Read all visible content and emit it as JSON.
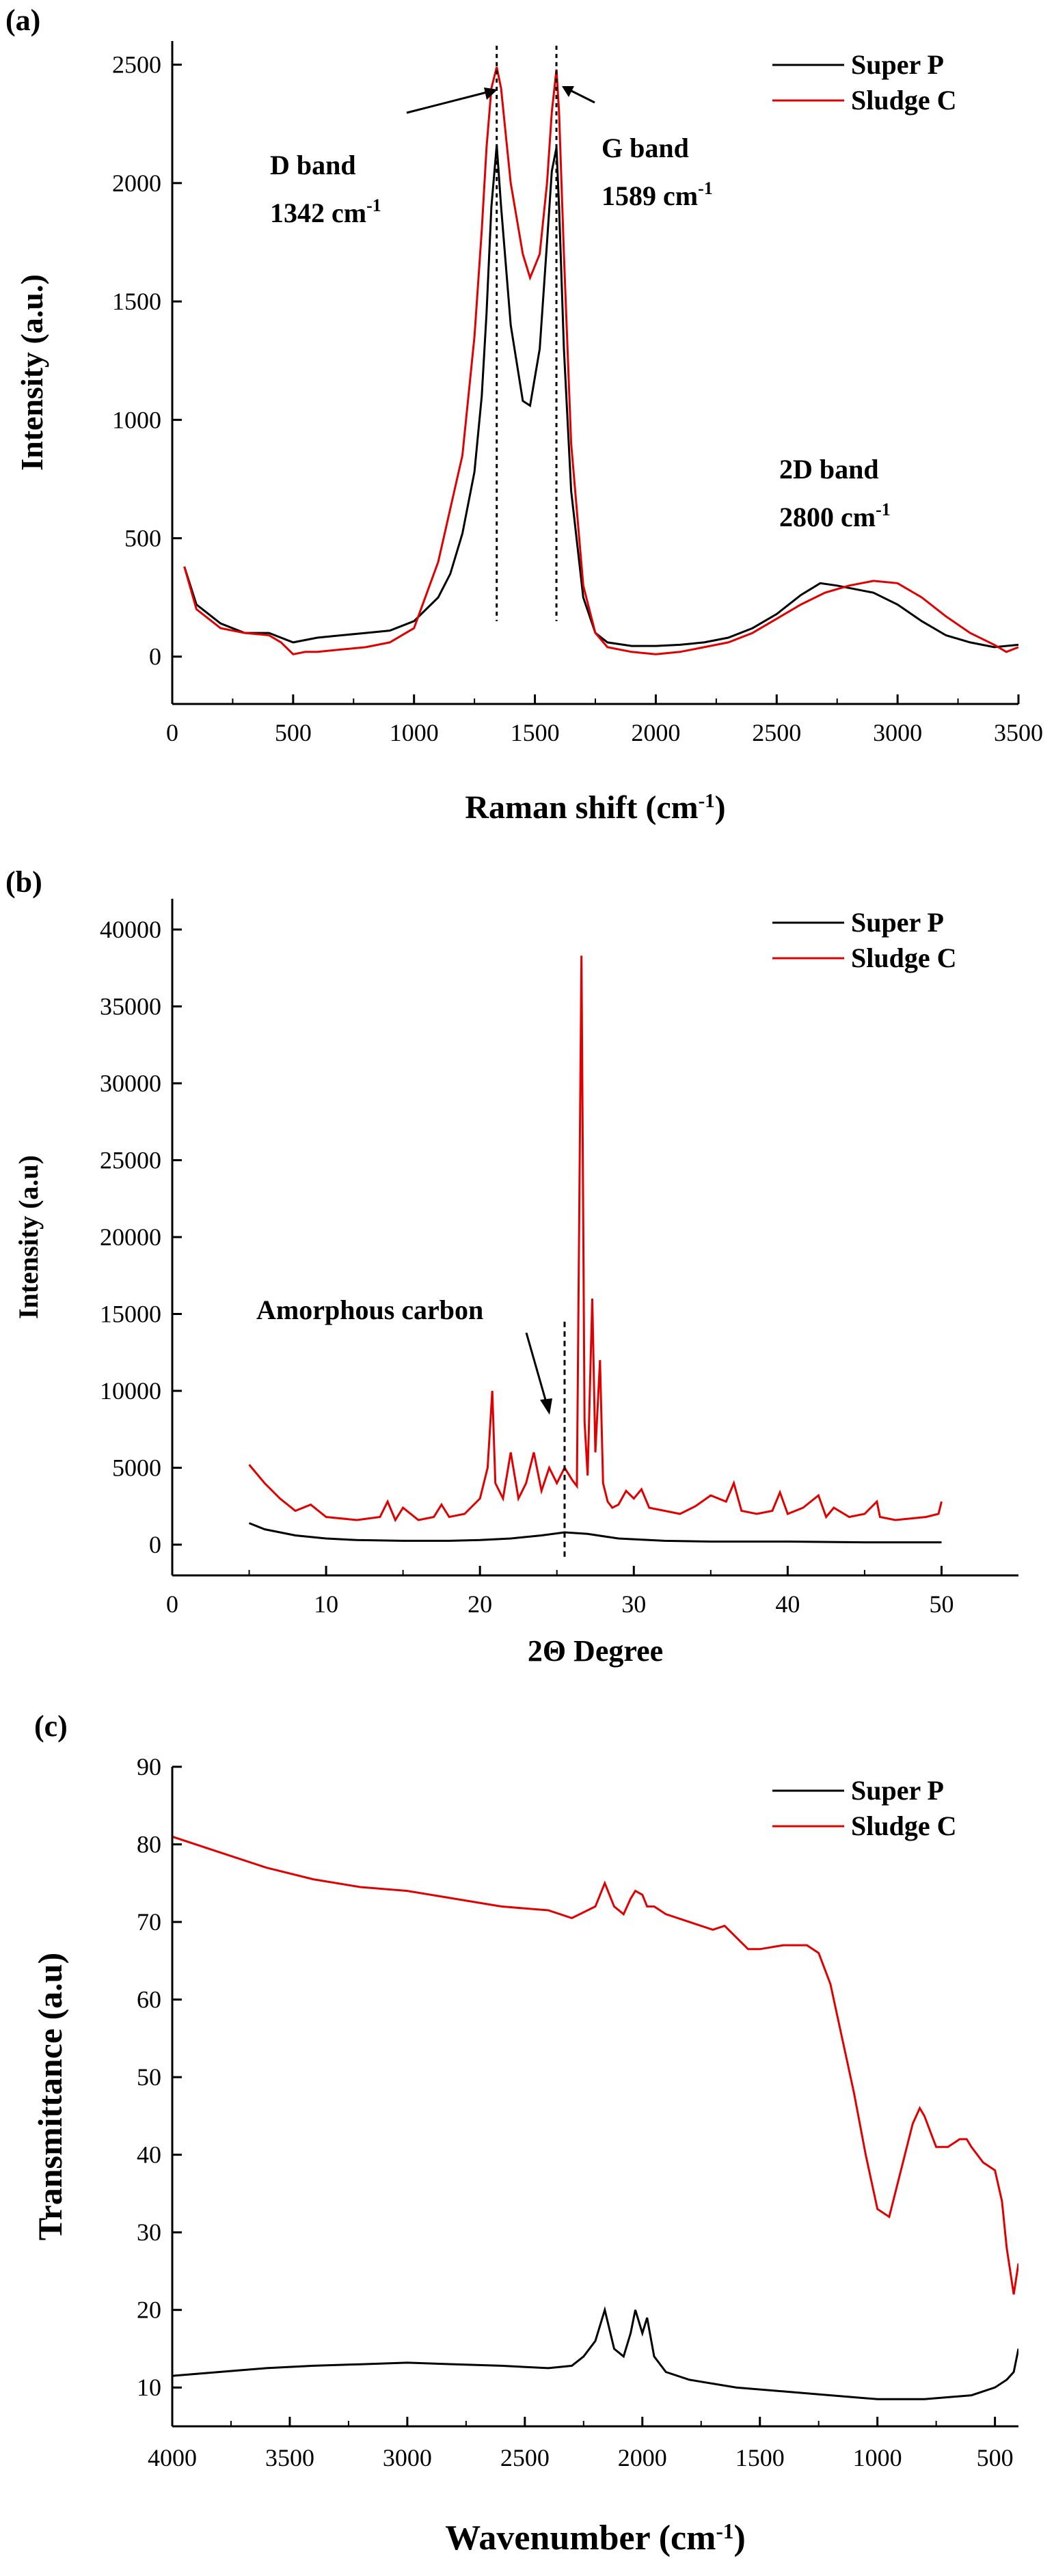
{
  "chart_data": [
    {
      "panel": "(a)",
      "type": "line",
      "xlabel": "Raman shift",
      "xlabel_unit": "(cm-1)",
      "ylabel": "Intensity (a.u.)",
      "xlim": [
        0,
        3500
      ],
      "ylim": [
        -200,
        2600
      ],
      "xticks": [
        0,
        500,
        1000,
        1500,
        2000,
        2500,
        3000,
        3500
      ],
      "yticks": [
        0,
        500,
        1000,
        1500,
        2000,
        2500
      ],
      "legend": "top-right",
      "series": [
        {
          "name": "Super P",
          "color": "#000000",
          "x": [
            50,
            100,
            200,
            300,
            400,
            500,
            600,
            700,
            800,
            900,
            1000,
            1100,
            1150,
            1200,
            1250,
            1280,
            1300,
            1320,
            1342,
            1360,
            1400,
            1450,
            1480,
            1520,
            1550,
            1570,
            1589,
            1600,
            1620,
            1650,
            1700,
            1750,
            1800,
            1900,
            2000,
            2100,
            2200,
            2300,
            2400,
            2500,
            2600,
            2680,
            2750,
            2800,
            2900,
            3000,
            3100,
            3200,
            3300,
            3400,
            3500
          ],
          "y": [
            380,
            220,
            140,
            100,
            100,
            60,
            80,
            90,
            100,
            110,
            150,
            250,
            350,
            520,
            780,
            1100,
            1450,
            1900,
            2160,
            1900,
            1400,
            1080,
            1060,
            1300,
            1750,
            2050,
            2150,
            1900,
            1300,
            700,
            250,
            100,
            60,
            45,
            45,
            50,
            60,
            80,
            120,
            180,
            260,
            310,
            300,
            290,
            270,
            220,
            150,
            90,
            60,
            40,
            50
          ]
        },
        {
          "name": "Sludge C",
          "color": "#e00000",
          "x": [
            50,
            100,
            200,
            300,
            400,
            450,
            500,
            550,
            600,
            700,
            800,
            900,
            1000,
            1100,
            1200,
            1250,
            1280,
            1300,
            1320,
            1342,
            1360,
            1380,
            1400,
            1450,
            1480,
            1520,
            1550,
            1570,
            1589,
            1600,
            1620,
            1650,
            1700,
            1750,
            1800,
            1900,
            2000,
            2100,
            2200,
            2300,
            2400,
            2500,
            2600,
            2700,
            2800,
            2900,
            3000,
            3100,
            3200,
            3300,
            3400,
            3450,
            3500
          ],
          "y": [
            380,
            200,
            120,
            100,
            90,
            60,
            10,
            20,
            20,
            30,
            40,
            60,
            120,
            400,
            850,
            1350,
            1800,
            2150,
            2400,
            2490,
            2400,
            2200,
            2000,
            1700,
            1600,
            1700,
            2000,
            2300,
            2480,
            2300,
            1700,
            900,
            300,
            100,
            40,
            20,
            10,
            20,
            40,
            60,
            100,
            160,
            220,
            270,
            300,
            320,
            310,
            250,
            170,
            100,
            50,
            20,
            40
          ]
        }
      ],
      "annotations": [
        {
          "text": "D band",
          "sub": "1342 cm",
          "sup": "-1",
          "x": 1342
        },
        {
          "text": "G band",
          "sub": "1589 cm",
          "sup": "-1",
          "x": 1589
        },
        {
          "text": "2D band",
          "sub": "2800 cm",
          "sup": "-1",
          "x": 2800
        }
      ]
    },
    {
      "panel": "(b)",
      "type": "line",
      "xlabel": "2Θ Degree",
      "ylabel": "Intensity (a.u)",
      "xlim": [
        0,
        55
      ],
      "ylim": [
        -2000,
        42000
      ],
      "xticks": [
        0,
        10,
        20,
        30,
        40,
        50
      ],
      "yticks": [
        0,
        5000,
        10000,
        15000,
        20000,
        25000,
        30000,
        35000,
        40000
      ],
      "legend": "top-right",
      "series": [
        {
          "name": "Super P",
          "color": "#000000",
          "x": [
            5,
            6,
            8,
            10,
            12,
            15,
            18,
            20,
            22,
            24,
            25.5,
            27,
            29,
            32,
            35,
            40,
            45,
            50
          ],
          "y": [
            1400,
            1000,
            600,
            400,
            300,
            250,
            250,
            300,
            400,
            600,
            800,
            700,
            400,
            250,
            200,
            200,
            150,
            150
          ]
        },
        {
          "name": "Sludge C",
          "color": "#e00000",
          "x": [
            5,
            6,
            7,
            8,
            9,
            10,
            12,
            13.5,
            14,
            14.5,
            15,
            16,
            17,
            17.5,
            18,
            19,
            20,
            20.5,
            20.8,
            21,
            21.5,
            22,
            22.5,
            23,
            23.5,
            24,
            24.5,
            25,
            25.5,
            26,
            26.3,
            26.6,
            26.8,
            27,
            27.3,
            27.5,
            27.8,
            28,
            28.3,
            28.6,
            29,
            29.5,
            30,
            30.5,
            31,
            32,
            33,
            34,
            35,
            36,
            36.5,
            37,
            38,
            39,
            39.5,
            40,
            41,
            42,
            42.5,
            43,
            44,
            45,
            45.8,
            46,
            47,
            48,
            49,
            49.8,
            50
          ],
          "y": [
            5200,
            4000,
            3000,
            2200,
            2600,
            1800,
            1600,
            1800,
            2800,
            1600,
            2400,
            1600,
            1800,
            2600,
            1800,
            2000,
            3000,
            5000,
            10000,
            4000,
            3000,
            6000,
            3000,
            4000,
            6000,
            3500,
            5000,
            4000,
            5000,
            4200,
            3800,
            38300,
            8000,
            4500,
            16000,
            6000,
            12000,
            4000,
            2800,
            2400,
            2600,
            3500,
            3000,
            3600,
            2400,
            2200,
            2000,
            2500,
            3200,
            2800,
            4000,
            2200,
            2000,
            2200,
            3400,
            2000,
            2400,
            3200,
            1800,
            2400,
            1800,
            2000,
            2800,
            1800,
            1600,
            1700,
            1800,
            2000,
            2800
          ]
        }
      ],
      "annotations": [
        {
          "text": "Amorphous carbon",
          "x": 25.5
        }
      ]
    },
    {
      "panel": "(c)",
      "type": "line",
      "xlabel": "Wavenumber",
      "xlabel_unit": "(cm-1)",
      "ylabel": "Transmittance (a.u)",
      "xlim": [
        4000,
        400
      ],
      "ylim": [
        5,
        90
      ],
      "xticks": [
        4000,
        3500,
        3000,
        2500,
        2000,
        1500,
        1000,
        500
      ],
      "yticks": [
        10,
        20,
        30,
        40,
        50,
        60,
        70,
        80,
        90
      ],
      "legend": "top-right",
      "series": [
        {
          "name": "Super P",
          "color": "#000000",
          "x": [
            4000,
            3800,
            3600,
            3400,
            3200,
            3000,
            2800,
            2600,
            2400,
            2300,
            2250,
            2200,
            2160,
            2120,
            2080,
            2050,
            2030,
            2000,
            1980,
            1950,
            1900,
            1800,
            1600,
            1400,
            1200,
            1000,
            800,
            600,
            500,
            450,
            420,
            400
          ],
          "y": [
            11.5,
            12,
            12.5,
            12.8,
            13,
            13.2,
            13,
            12.8,
            12.5,
            12.8,
            14,
            16,
            20,
            15,
            14,
            17,
            20,
            17,
            19,
            14,
            12,
            11,
            10,
            9.5,
            9,
            8.5,
            8.5,
            9,
            10,
            11,
            12,
            15
          ]
        },
        {
          "name": "Sludge C",
          "color": "#e00000",
          "x": [
            4000,
            3800,
            3600,
            3400,
            3200,
            3000,
            2800,
            2600,
            2400,
            2300,
            2200,
            2160,
            2120,
            2080,
            2050,
            2030,
            2000,
            1980,
            1950,
            1900,
            1800,
            1700,
            1650,
            1600,
            1550,
            1500,
            1400,
            1300,
            1250,
            1200,
            1150,
            1100,
            1050,
            1000,
            950,
            900,
            850,
            820,
            800,
            750,
            700,
            650,
            620,
            600,
            550,
            500,
            470,
            450,
            420,
            400
          ],
          "y": [
            81,
            79,
            77,
            75.5,
            74.5,
            74,
            73,
            72,
            71.5,
            70.5,
            72,
            75,
            72,
            71,
            73,
            74,
            73.5,
            72,
            72,
            71,
            70,
            69,
            69.5,
            68,
            66.5,
            66.5,
            67,
            67,
            66,
            62,
            55,
            48,
            40,
            33,
            32,
            38,
            44,
            46,
            45,
            41,
            41,
            42,
            42,
            41,
            39,
            38,
            34,
            28,
            22,
            26
          ]
        }
      ]
    }
  ]
}
